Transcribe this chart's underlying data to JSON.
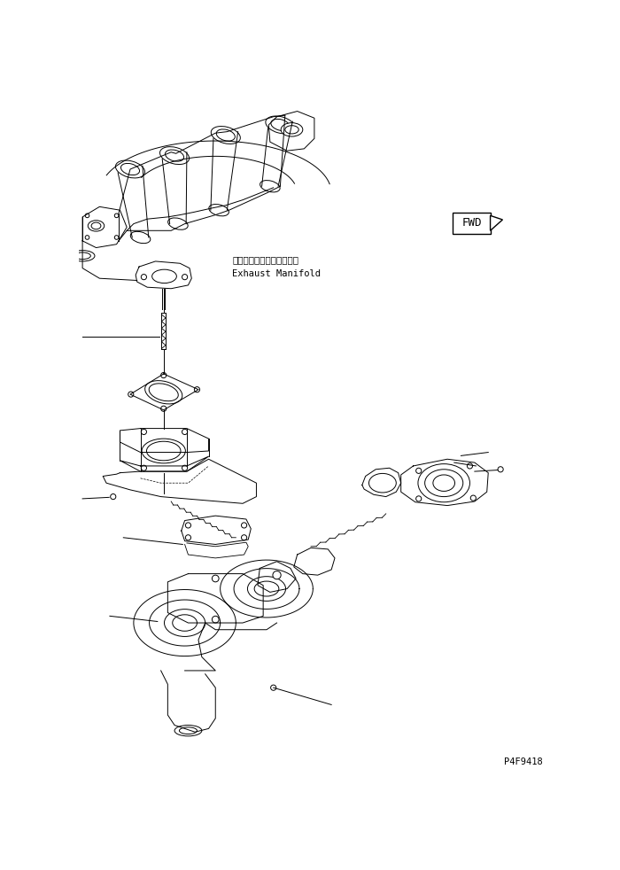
{
  "bg_color": "#ffffff",
  "line_color": "#000000",
  "part_number": "P4F9418",
  "fwd_label": "FWD",
  "exhaust_manifold_jp": "エキゾーストマニホールド",
  "exhaust_manifold_en": "Exhaust Manifold",
  "fig_width": 7.0,
  "fig_height": 9.82,
  "dpi": 100
}
